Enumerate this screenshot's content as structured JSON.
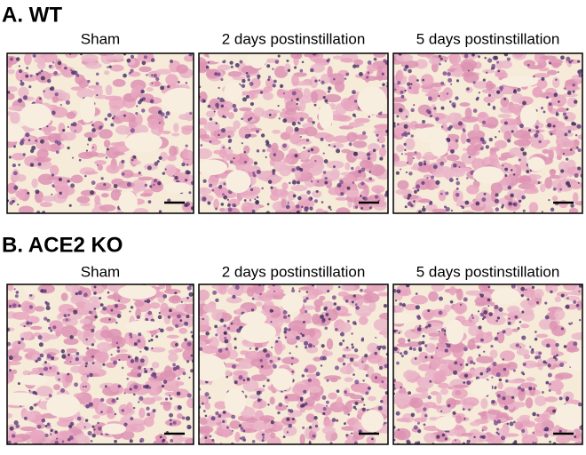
{
  "panels": [
    {
      "label": "A. WT",
      "images": [
        {
          "title": "Sham"
        },
        {
          "title": "2 days postinstillation"
        },
        {
          "title": "5 days postinstillation"
        }
      ]
    },
    {
      "label": "B. ACE2 KO",
      "images": [
        {
          "title": "Sham"
        },
        {
          "title": "2 days postinstillation"
        },
        {
          "title": "5 days postinstillation"
        }
      ]
    }
  ]
}
